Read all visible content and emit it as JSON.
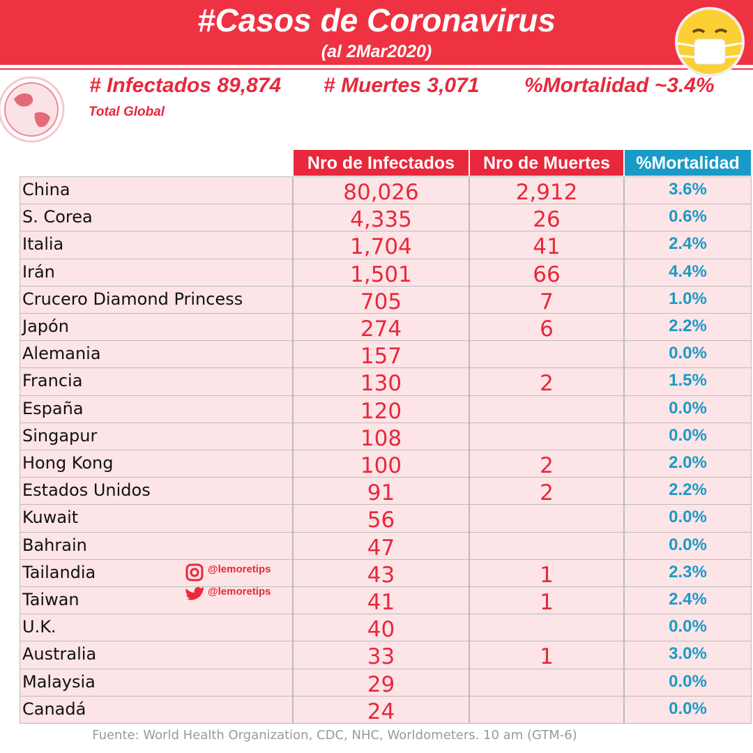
{
  "header": {
    "title": "#Casos de Coronavirus",
    "subtitle": "(al 2Mar2020)"
  },
  "summary": {
    "infected": "# Infectados 89,874",
    "deaths": "# Muertes 3,071",
    "mortality": "%Mortalidad ~3.4%",
    "scope": "Total Global"
  },
  "table": {
    "columns": [
      "Nro de Infectados",
      "Nro de Muertes",
      "%Mortalidad"
    ],
    "rows": [
      [
        "China",
        "80,026",
        "2,912",
        "3.6%"
      ],
      [
        "S. Corea",
        "4,335",
        "26",
        "0.6%"
      ],
      [
        "Italia",
        "1,704",
        "41",
        "2.4%"
      ],
      [
        "Irán",
        "1,501",
        "66",
        "4.4%"
      ],
      [
        "Crucero Diamond Princess",
        "705",
        "7",
        "1.0%"
      ],
      [
        "Japón",
        "274",
        "6",
        "2.2%"
      ],
      [
        "Alemania",
        "157",
        null,
        "0.0%"
      ],
      [
        "Francia",
        "130",
        "2",
        "1.5%"
      ],
      [
        "España",
        "120",
        null,
        "0.0%"
      ],
      [
        "Singapur",
        "108",
        null,
        "0.0%"
      ],
      [
        "Hong Kong",
        "100",
        "2",
        "2.0%"
      ],
      [
        "Estados Unidos",
        "91",
        "2",
        "2.2%"
      ],
      [
        "Kuwait",
        "56",
        null,
        "0.0%"
      ],
      [
        "Bahrain",
        "47",
        null,
        "0.0%"
      ],
      [
        "Tailandia",
        "43",
        "1",
        "2.3%"
      ],
      [
        "Taiwan",
        "41",
        "1",
        "2.4%"
      ],
      [
        "U.K.",
        "40",
        null,
        "0.0%"
      ],
      [
        "Australia",
        "33",
        "1",
        "3.0%"
      ],
      [
        "Malaysia",
        "29",
        null,
        "0.0%"
      ],
      [
        "Canadá",
        "24",
        null,
        "0.0%"
      ]
    ]
  },
  "social": {
    "instagram": "@lemoretips",
    "twitter": "@lemoretips"
  },
  "footer": {
    "source": "Fuente: World Health Organization, CDC, NHC, Worldometers. 10 am (GTM-6)"
  }
}
